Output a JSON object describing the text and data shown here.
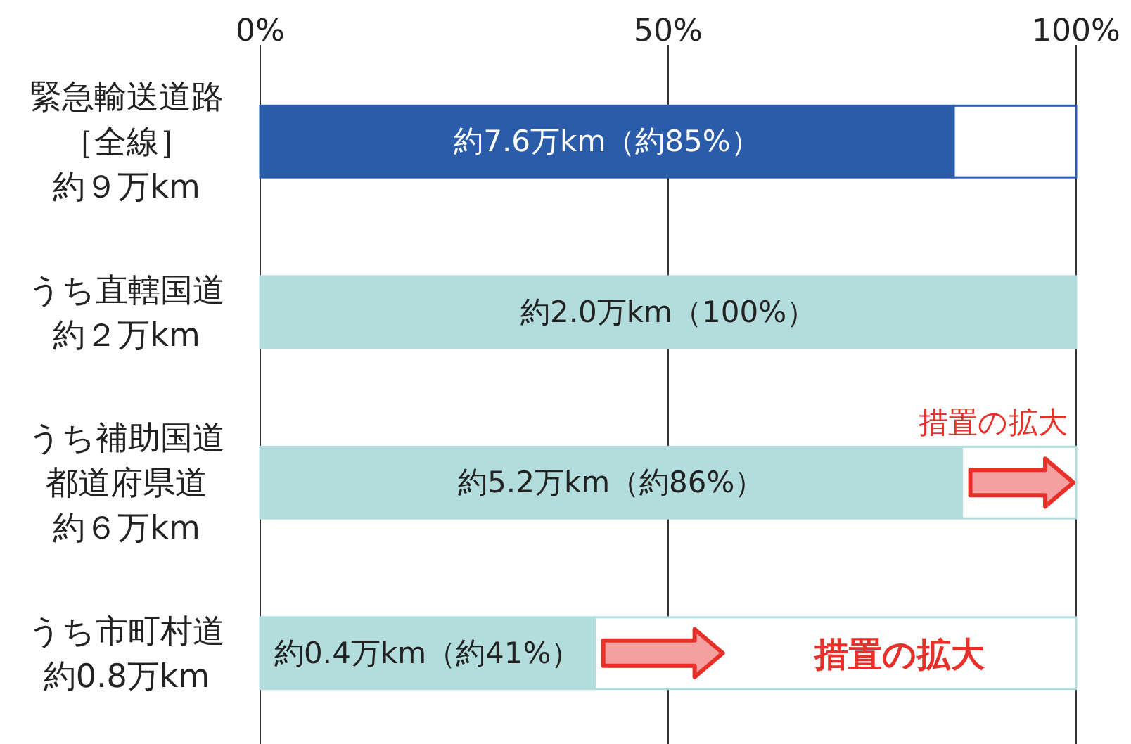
{
  "chart_data": {
    "type": "bar",
    "orientation": "horizontal",
    "stacked": true,
    "categories": [
      "緊急輸送道路［全線］約９万km",
      "うち直轄国道約２万km",
      "うち補助国道都道府県道約６万km",
      "うち市町村道約0.8万km"
    ],
    "series": [
      {
        "colors": [
          "#2a5caa",
          "#b3dcdc",
          "#b3dcdc",
          "#b3dcdc"
        ],
        "values": [
          85,
          100,
          86,
          41
        ],
        "value_labels": [
          "約7.6万km（約85%）",
          "約2.0万km（100%）",
          "約5.2万km（約86%）",
          "約0.4万km（約41%）"
        ]
      },
      {
        "color": "#ffffff",
        "values": [
          15,
          0,
          14,
          59
        ]
      }
    ],
    "xlim": [
      0,
      100
    ],
    "xticks": [
      {
        "value": 0,
        "label": "0%"
      },
      {
        "value": 50,
        "label": "50%"
      },
      {
        "value": 100,
        "label": "100%"
      }
    ],
    "grid": "x",
    "annotations": [
      "措置の拡大",
      "措置の拡大"
    ]
  }
}
